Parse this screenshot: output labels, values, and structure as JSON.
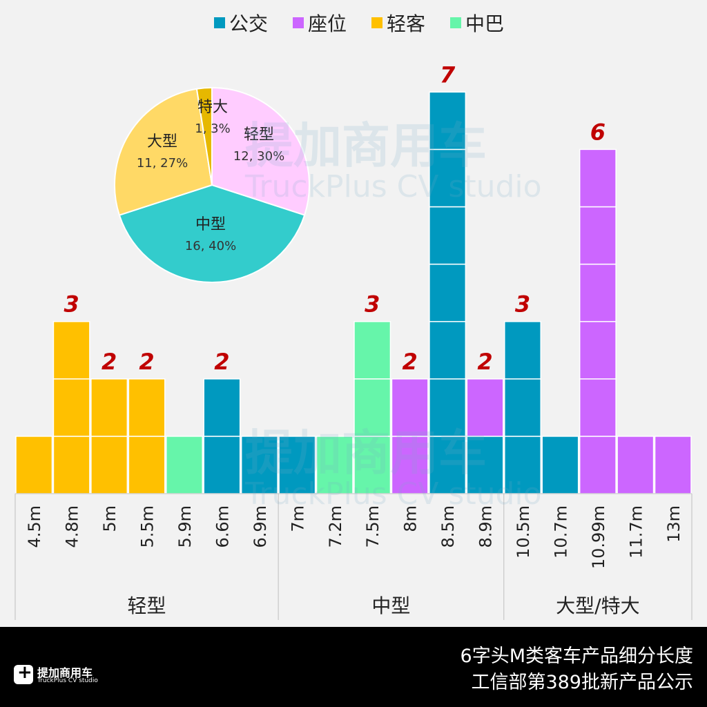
{
  "chart_data": [
    {
      "type": "bar",
      "stacked": true,
      "categories": [
        "4.5m",
        "4.8m",
        "5m",
        "5.5m",
        "5.9m",
        "6.6m",
        "6.9m",
        "7m",
        "7.2m",
        "7.5m",
        "8m",
        "8.5m",
        "8.9m",
        "10.5m",
        "10.7m",
        "10.99m",
        "11.7m",
        "13m"
      ],
      "groups": [
        {
          "label": "轻型",
          "from": 0,
          "to": 6
        },
        {
          "label": "中型",
          "from": 7,
          "to": 12
        },
        {
          "label": "大型/特大",
          "from": 13,
          "to": 17
        }
      ],
      "series": [
        {
          "name": "公交",
          "color": "#0099bf",
          "values": [
            0,
            0,
            0,
            0,
            0,
            2,
            1,
            1,
            0,
            0,
            0,
            7,
            1,
            3,
            1,
            0,
            0,
            0
          ]
        },
        {
          "name": "座位",
          "color": "#cc66ff",
          "values": [
            0,
            0,
            0,
            0,
            0,
            0,
            0,
            0,
            0,
            0,
            2,
            0,
            1,
            0,
            0,
            6,
            1,
            1
          ]
        },
        {
          "name": "轻客",
          "color": "#ffc000",
          "values": [
            1,
            3,
            2,
            2,
            0,
            0,
            0,
            0,
            0,
            0,
            0,
            0,
            0,
            0,
            0,
            0,
            0,
            0
          ]
        },
        {
          "name": "中巴",
          "color": "#66f5aa",
          "values": [
            0,
            0,
            0,
            0,
            1,
            0,
            0,
            0,
            1,
            3,
            0,
            0,
            0,
            0,
            0,
            0,
            0,
            0
          ]
        }
      ],
      "data_labels": [
        "",
        "3",
        "2",
        "2",
        "",
        "2",
        "",
        "",
        "",
        "3",
        "2",
        "7",
        "2",
        "3",
        "",
        "6",
        "",
        ""
      ],
      "ylim": [
        0,
        8
      ],
      "legend": "top",
      "grid": false
    },
    {
      "type": "pie",
      "slices": [
        {
          "label": "轻型",
          "value": 12,
          "pct": "30%",
          "color": "#ffccff",
          "text": "12, 30%"
        },
        {
          "label": "中型",
          "value": 16,
          "pct": "40%",
          "color": "#33cccc",
          "text": "16, 40%"
        },
        {
          "label": "大型",
          "value": 11,
          "pct": "27%",
          "color": "#ffd966",
          "text": "11, 27%"
        },
        {
          "label": "特大",
          "value": 1,
          "pct": "3%",
          "color": "#e6b800",
          "text": "1, 3%"
        }
      ]
    }
  ],
  "footer": {
    "title_line1": "6字头M类客车产品细分长度",
    "title_line2": "工信部第389批新产品公示",
    "logo_cn": "提加商用车",
    "logo_en": "TruckPlus CV studio"
  },
  "watermark": {
    "cn": "提加商用车",
    "en": "TruckPlus CV studio"
  }
}
